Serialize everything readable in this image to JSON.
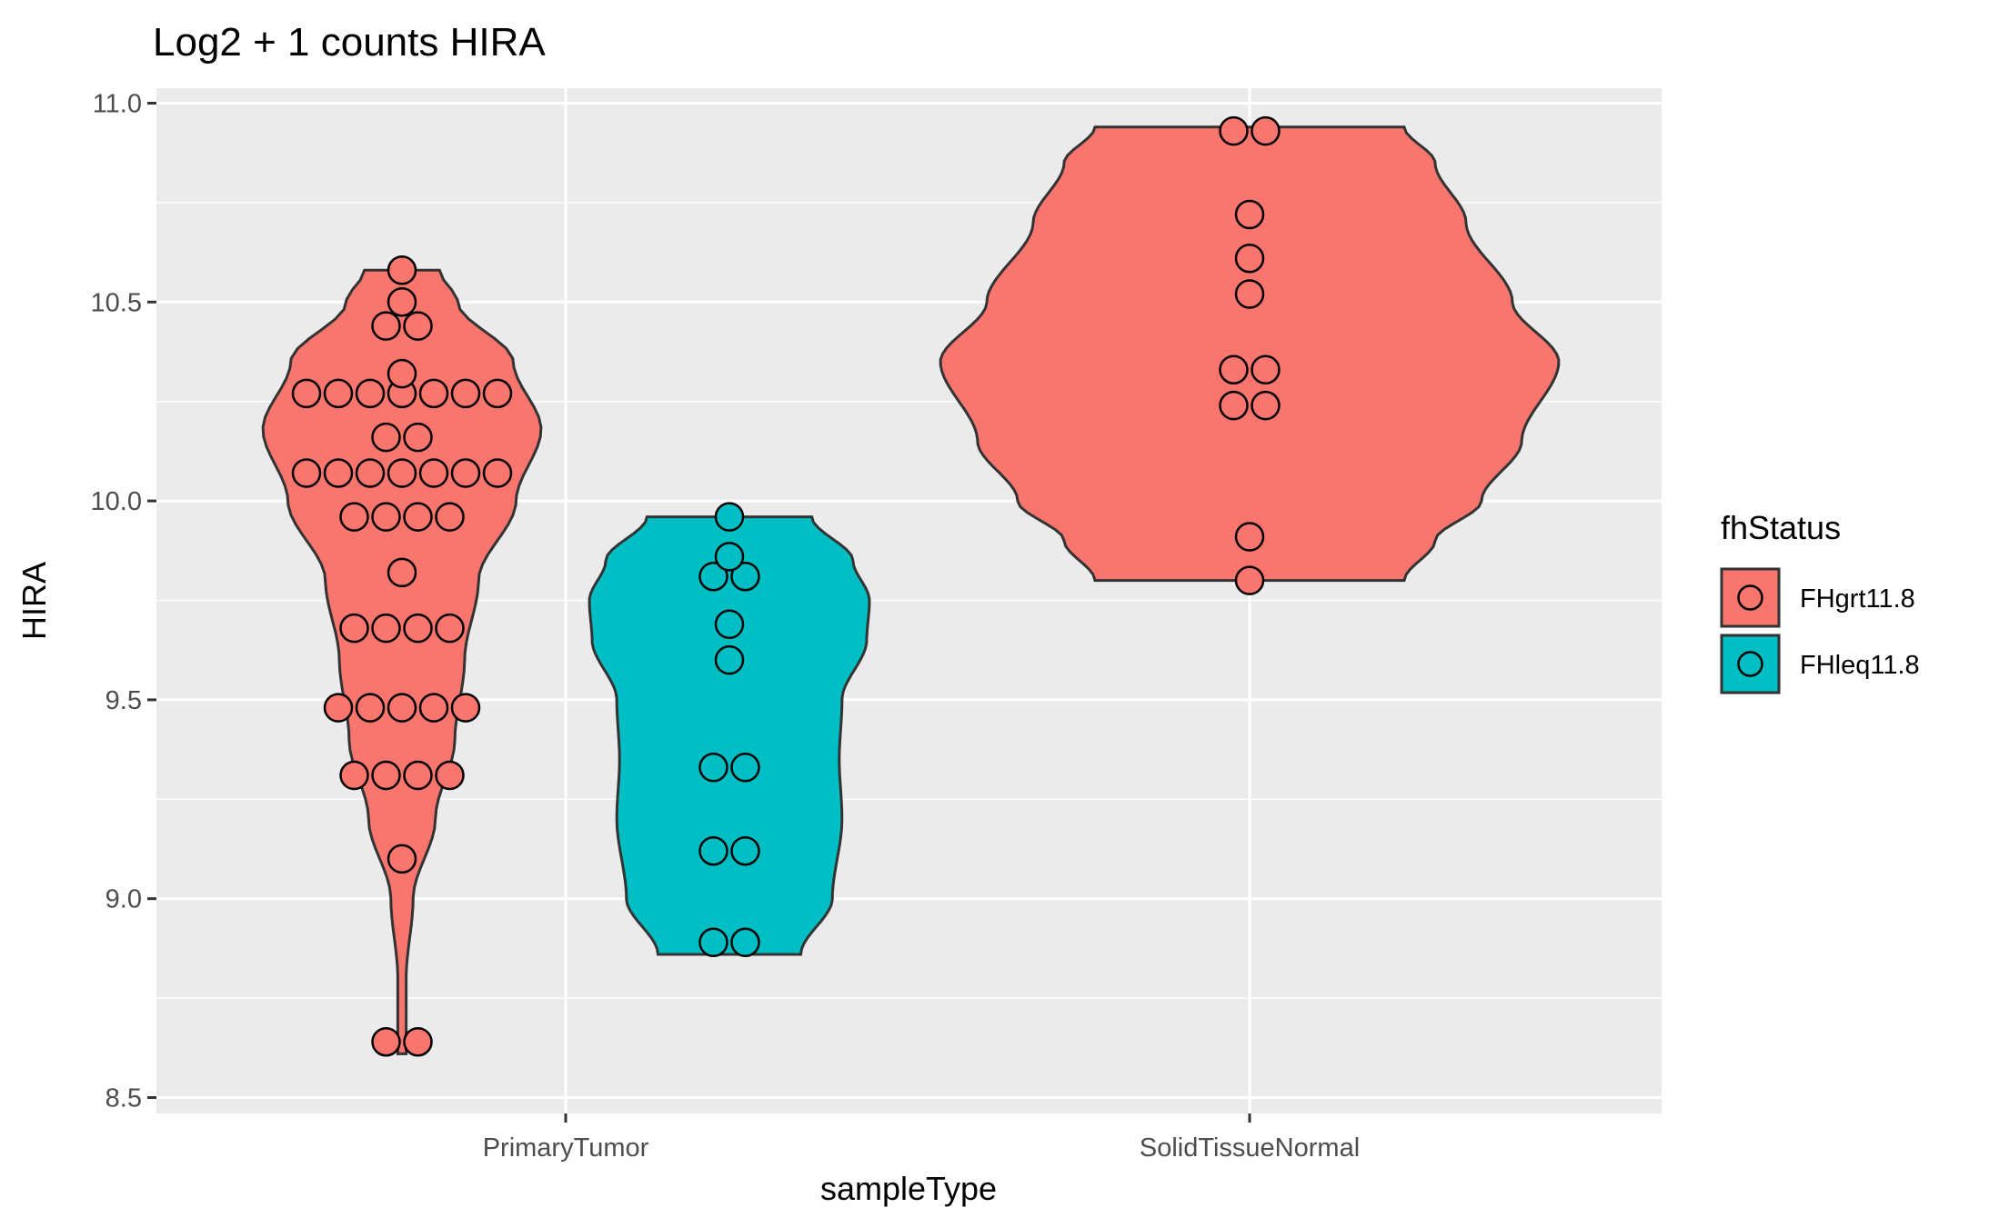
{
  "chart_data": {
    "type": "violin",
    "title": "Log2 + 1 counts HIRA",
    "xlabel": "sampleType",
    "ylabel": "HIRA",
    "ylim": [
      8.5,
      11.0
    ],
    "yticks": [
      "8.5",
      "9.0",
      "9.5",
      "10.0",
      "10.5",
      "11.0"
    ],
    "categories": [
      "PrimaryTumor",
      "SolidTissueNormal"
    ],
    "legend": {
      "title": "fhStatus",
      "position": "right",
      "items": [
        {
          "label": "FHgrt11.8",
          "color": "#F8766D"
        },
        {
          "label": "FHleq11.8",
          "color": "#00BFC4"
        }
      ]
    },
    "series": [
      {
        "name": "FHgrt11.8",
        "category": "PrimaryTumor",
        "color": "#F8766D",
        "range": [
          8.61,
          10.58
        ],
        "density": [
          [
            8.61,
            0.03
          ],
          [
            8.8,
            0.03
          ],
          [
            9.0,
            0.08
          ],
          [
            9.2,
            0.24
          ],
          [
            9.4,
            0.38
          ],
          [
            9.6,
            0.45
          ],
          [
            9.8,
            0.55
          ],
          [
            10.0,
            0.82
          ],
          [
            10.18,
            1.0
          ],
          [
            10.35,
            0.8
          ],
          [
            10.5,
            0.4
          ],
          [
            10.58,
            0.27
          ]
        ],
        "points": [
          8.64,
          8.64,
          9.1,
          9.31,
          9.31,
          9.31,
          9.31,
          9.48,
          9.48,
          9.48,
          9.48,
          9.48,
          9.68,
          9.68,
          9.68,
          9.68,
          9.82,
          9.96,
          9.96,
          9.96,
          9.96,
          10.07,
          10.07,
          10.07,
          10.07,
          10.07,
          10.07,
          10.07,
          10.16,
          10.16,
          10.27,
          10.27,
          10.27,
          10.27,
          10.27,
          10.27,
          10.27,
          10.32,
          10.44,
          10.44,
          10.5,
          10.58
        ]
      },
      {
        "name": "FHleq11.8",
        "category": "PrimaryTumor",
        "color": "#00BFC4",
        "range": [
          8.86,
          9.96
        ],
        "density": [
          [
            8.86,
            0.52
          ],
          [
            9.0,
            0.75
          ],
          [
            9.2,
            0.82
          ],
          [
            9.35,
            0.8
          ],
          [
            9.5,
            0.82
          ],
          [
            9.65,
            1.0
          ],
          [
            9.75,
            1.02
          ],
          [
            9.85,
            0.9
          ],
          [
            9.96,
            0.6
          ]
        ],
        "points": [
          8.89,
          8.89,
          9.12,
          9.12,
          9.33,
          9.33,
          9.6,
          9.69,
          9.81,
          9.81,
          9.86,
          9.96
        ]
      },
      {
        "name": "FHgrt11.8",
        "category": "SolidTissueNormal",
        "color": "#F8766D",
        "range": [
          9.8,
          10.94
        ],
        "density": [
          [
            9.8,
            0.5
          ],
          [
            9.9,
            0.6
          ],
          [
            10.0,
            0.75
          ],
          [
            10.15,
            0.88
          ],
          [
            10.35,
            1.0
          ],
          [
            10.5,
            0.85
          ],
          [
            10.7,
            0.7
          ],
          [
            10.85,
            0.6
          ],
          [
            10.94,
            0.5
          ]
        ],
        "points": [
          9.8,
          9.91,
          10.24,
          10.24,
          10.33,
          10.33,
          10.52,
          10.61,
          10.72,
          10.93,
          10.93
        ]
      }
    ]
  }
}
